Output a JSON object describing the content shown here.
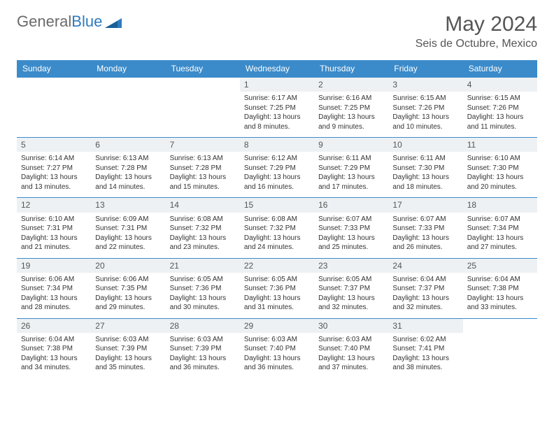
{
  "brand": {
    "general": "General",
    "blue": "Blue"
  },
  "title": "May 2024",
  "location": "Seis de Octubre, Mexico",
  "colors": {
    "header_bg": "#3b8bca",
    "header_text": "#ffffff",
    "daynum_bg": "#eef1f3",
    "border": "#3b8bca",
    "text": "#333333",
    "logo_gray": "#6a6a6a",
    "logo_blue": "#2f7bbf"
  },
  "day_headers": [
    "Sunday",
    "Monday",
    "Tuesday",
    "Wednesday",
    "Thursday",
    "Friday",
    "Saturday"
  ],
  "weeks": [
    [
      {
        "n": "",
        "d": ""
      },
      {
        "n": "",
        "d": ""
      },
      {
        "n": "",
        "d": ""
      },
      {
        "n": "1",
        "d": "Sunrise: 6:17 AM\nSunset: 7:25 PM\nDaylight: 13 hours and 8 minutes."
      },
      {
        "n": "2",
        "d": "Sunrise: 6:16 AM\nSunset: 7:25 PM\nDaylight: 13 hours and 9 minutes."
      },
      {
        "n": "3",
        "d": "Sunrise: 6:15 AM\nSunset: 7:26 PM\nDaylight: 13 hours and 10 minutes."
      },
      {
        "n": "4",
        "d": "Sunrise: 6:15 AM\nSunset: 7:26 PM\nDaylight: 13 hours and 11 minutes."
      }
    ],
    [
      {
        "n": "5",
        "d": "Sunrise: 6:14 AM\nSunset: 7:27 PM\nDaylight: 13 hours and 13 minutes."
      },
      {
        "n": "6",
        "d": "Sunrise: 6:13 AM\nSunset: 7:28 PM\nDaylight: 13 hours and 14 minutes."
      },
      {
        "n": "7",
        "d": "Sunrise: 6:13 AM\nSunset: 7:28 PM\nDaylight: 13 hours and 15 minutes."
      },
      {
        "n": "8",
        "d": "Sunrise: 6:12 AM\nSunset: 7:29 PM\nDaylight: 13 hours and 16 minutes."
      },
      {
        "n": "9",
        "d": "Sunrise: 6:11 AM\nSunset: 7:29 PM\nDaylight: 13 hours and 17 minutes."
      },
      {
        "n": "10",
        "d": "Sunrise: 6:11 AM\nSunset: 7:30 PM\nDaylight: 13 hours and 18 minutes."
      },
      {
        "n": "11",
        "d": "Sunrise: 6:10 AM\nSunset: 7:30 PM\nDaylight: 13 hours and 20 minutes."
      }
    ],
    [
      {
        "n": "12",
        "d": "Sunrise: 6:10 AM\nSunset: 7:31 PM\nDaylight: 13 hours and 21 minutes."
      },
      {
        "n": "13",
        "d": "Sunrise: 6:09 AM\nSunset: 7:31 PM\nDaylight: 13 hours and 22 minutes."
      },
      {
        "n": "14",
        "d": "Sunrise: 6:08 AM\nSunset: 7:32 PM\nDaylight: 13 hours and 23 minutes."
      },
      {
        "n": "15",
        "d": "Sunrise: 6:08 AM\nSunset: 7:32 PM\nDaylight: 13 hours and 24 minutes."
      },
      {
        "n": "16",
        "d": "Sunrise: 6:07 AM\nSunset: 7:33 PM\nDaylight: 13 hours and 25 minutes."
      },
      {
        "n": "17",
        "d": "Sunrise: 6:07 AM\nSunset: 7:33 PM\nDaylight: 13 hours and 26 minutes."
      },
      {
        "n": "18",
        "d": "Sunrise: 6:07 AM\nSunset: 7:34 PM\nDaylight: 13 hours and 27 minutes."
      }
    ],
    [
      {
        "n": "19",
        "d": "Sunrise: 6:06 AM\nSunset: 7:34 PM\nDaylight: 13 hours and 28 minutes."
      },
      {
        "n": "20",
        "d": "Sunrise: 6:06 AM\nSunset: 7:35 PM\nDaylight: 13 hours and 29 minutes."
      },
      {
        "n": "21",
        "d": "Sunrise: 6:05 AM\nSunset: 7:36 PM\nDaylight: 13 hours and 30 minutes."
      },
      {
        "n": "22",
        "d": "Sunrise: 6:05 AM\nSunset: 7:36 PM\nDaylight: 13 hours and 31 minutes."
      },
      {
        "n": "23",
        "d": "Sunrise: 6:05 AM\nSunset: 7:37 PM\nDaylight: 13 hours and 32 minutes."
      },
      {
        "n": "24",
        "d": "Sunrise: 6:04 AM\nSunset: 7:37 PM\nDaylight: 13 hours and 32 minutes."
      },
      {
        "n": "25",
        "d": "Sunrise: 6:04 AM\nSunset: 7:38 PM\nDaylight: 13 hours and 33 minutes."
      }
    ],
    [
      {
        "n": "26",
        "d": "Sunrise: 6:04 AM\nSunset: 7:38 PM\nDaylight: 13 hours and 34 minutes."
      },
      {
        "n": "27",
        "d": "Sunrise: 6:03 AM\nSunset: 7:39 PM\nDaylight: 13 hours and 35 minutes."
      },
      {
        "n": "28",
        "d": "Sunrise: 6:03 AM\nSunset: 7:39 PM\nDaylight: 13 hours and 36 minutes."
      },
      {
        "n": "29",
        "d": "Sunrise: 6:03 AM\nSunset: 7:40 PM\nDaylight: 13 hours and 36 minutes."
      },
      {
        "n": "30",
        "d": "Sunrise: 6:03 AM\nSunset: 7:40 PM\nDaylight: 13 hours and 37 minutes."
      },
      {
        "n": "31",
        "d": "Sunrise: 6:02 AM\nSunset: 7:41 PM\nDaylight: 13 hours and 38 minutes."
      },
      {
        "n": "",
        "d": ""
      }
    ]
  ]
}
